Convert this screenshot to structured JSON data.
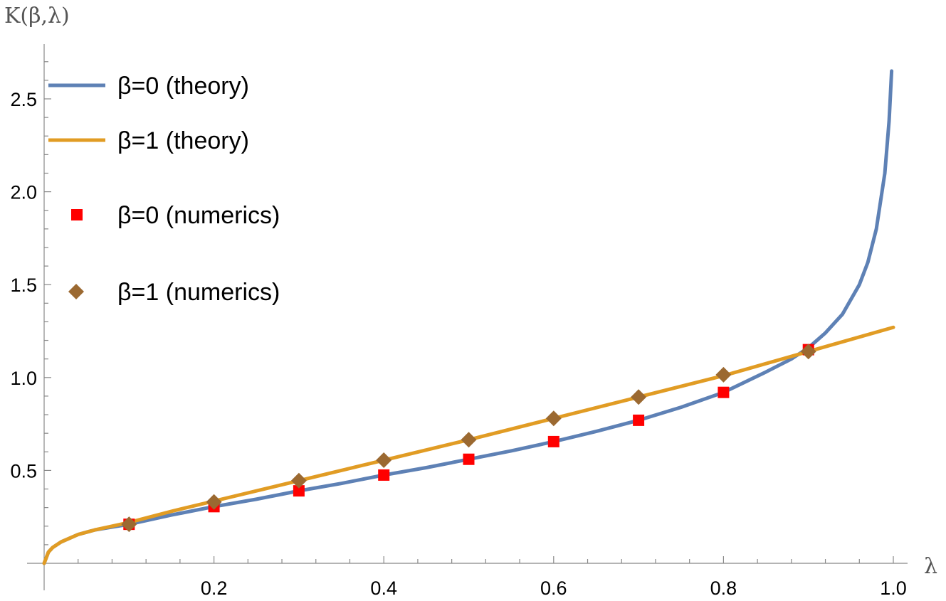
{
  "chart_data": {
    "type": "line",
    "xlabel": "λ",
    "ylabel": "K(β,λ)",
    "xlim": [
      0,
      1.0
    ],
    "ylim": [
      0,
      2.7
    ],
    "x_ticks": [
      {
        "value": 0.2,
        "label": "0.2"
      },
      {
        "value": 0.4,
        "label": "0.4"
      },
      {
        "value": 0.6,
        "label": "0.6"
      },
      {
        "value": 0.8,
        "label": "0.8"
      },
      {
        "value": 1.0,
        "label": "1.0"
      }
    ],
    "y_ticks": [
      {
        "value": 0.5,
        "label": "0.5"
      },
      {
        "value": 1.0,
        "label": "1.0"
      },
      {
        "value": 1.5,
        "label": "1.5"
      },
      {
        "value": 2.0,
        "label": "2.0"
      },
      {
        "value": 2.5,
        "label": "2.5"
      }
    ],
    "grid": false,
    "legend_position": "top-left",
    "series": [
      {
        "name": "β=0 (theory)",
        "kind": "line",
        "color": "#5e81b5",
        "x": [
          0,
          0.005,
          0.01,
          0.02,
          0.04,
          0.06,
          0.08,
          0.1,
          0.15,
          0.2,
          0.25,
          0.3,
          0.35,
          0.4,
          0.45,
          0.5,
          0.55,
          0.6,
          0.65,
          0.7,
          0.75,
          0.8,
          0.85,
          0.88,
          0.9,
          0.92,
          0.94,
          0.96,
          0.97,
          0.98,
          0.99,
          0.995,
          0.998
        ],
        "y": [
          0,
          0.06,
          0.085,
          0.115,
          0.155,
          0.18,
          0.195,
          0.21,
          0.26,
          0.305,
          0.345,
          0.39,
          0.43,
          0.475,
          0.515,
          0.56,
          0.605,
          0.655,
          0.71,
          0.77,
          0.84,
          0.92,
          1.03,
          1.1,
          1.16,
          1.24,
          1.34,
          1.5,
          1.62,
          1.8,
          2.1,
          2.38,
          2.65
        ]
      },
      {
        "name": "β=1 (theory)",
        "kind": "line",
        "color": "#e19c24",
        "x": [
          0,
          0.005,
          0.01,
          0.02,
          0.04,
          0.06,
          0.08,
          0.1,
          0.15,
          0.2,
          0.3,
          0.4,
          0.5,
          0.6,
          0.7,
          0.8,
          0.9,
          1.0
        ],
        "y": [
          0,
          0.06,
          0.085,
          0.115,
          0.155,
          0.18,
          0.2,
          0.22,
          0.28,
          0.335,
          0.445,
          0.555,
          0.665,
          0.78,
          0.895,
          1.01,
          1.14,
          1.27
        ]
      },
      {
        "name": "β=0 (numerics)",
        "kind": "scatter",
        "marker": "square",
        "color": "#ff0000",
        "x": [
          0.1,
          0.2,
          0.3,
          0.4,
          0.5,
          0.6,
          0.7,
          0.8,
          0.9
        ],
        "y": [
          0.21,
          0.305,
          0.39,
          0.475,
          0.56,
          0.655,
          0.77,
          0.92,
          1.15
        ]
      },
      {
        "name": "β=1 (numerics)",
        "kind": "scatter",
        "marker": "diamond",
        "color": "#9b6931",
        "x": [
          0.1,
          0.2,
          0.3,
          0.4,
          0.5,
          0.6,
          0.7,
          0.8,
          0.9
        ],
        "y": [
          0.21,
          0.33,
          0.445,
          0.555,
          0.665,
          0.78,
          0.895,
          1.015,
          1.14
        ]
      }
    ]
  }
}
